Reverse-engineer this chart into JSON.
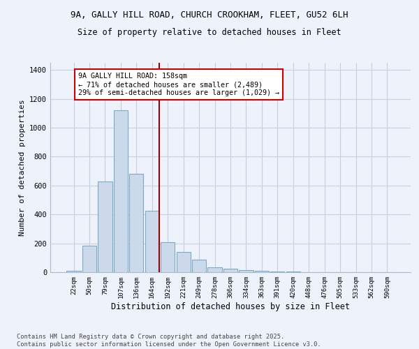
{
  "title_line1": "9A, GALLY HILL ROAD, CHURCH CROOKHAM, FLEET, GU52 6LH",
  "title_line2": "Size of property relative to detached houses in Fleet",
  "xlabel": "Distribution of detached houses by size in Fleet",
  "ylabel": "Number of detached properties",
  "categories": [
    "22sqm",
    "50sqm",
    "79sqm",
    "107sqm",
    "136sqm",
    "164sqm",
    "192sqm",
    "221sqm",
    "249sqm",
    "278sqm",
    "306sqm",
    "334sqm",
    "363sqm",
    "391sqm",
    "420sqm",
    "448sqm",
    "476sqm",
    "505sqm",
    "533sqm",
    "562sqm",
    "590sqm"
  ],
  "values": [
    10,
    185,
    630,
    1120,
    680,
    425,
    210,
    140,
    85,
    35,
    25,
    15,
    10,
    5,
    3,
    2,
    1,
    1,
    0,
    0,
    0
  ],
  "bar_color": "#ccd9ea",
  "bar_edge_color": "#7aaac8",
  "bar_edge_width": 0.8,
  "red_line_index": 5,
  "red_line_color": "#990000",
  "annotation_text": "9A GALLY HILL ROAD: 158sqm\n← 71% of detached houses are smaller (2,489)\n29% of semi-detached houses are larger (1,029) →",
  "annotation_box_color": "#ffffff",
  "annotation_box_edge": "#cc0000",
  "ylim": [
    0,
    1450
  ],
  "yticks": [
    0,
    200,
    400,
    600,
    800,
    1000,
    1200,
    1400
  ],
  "bg_color": "#eef2fa",
  "grid_color": "#c8cfe0",
  "footer_line1": "Contains HM Land Registry data © Crown copyright and database right 2025.",
  "footer_line2": "Contains public sector information licensed under the Open Government Licence v3.0."
}
